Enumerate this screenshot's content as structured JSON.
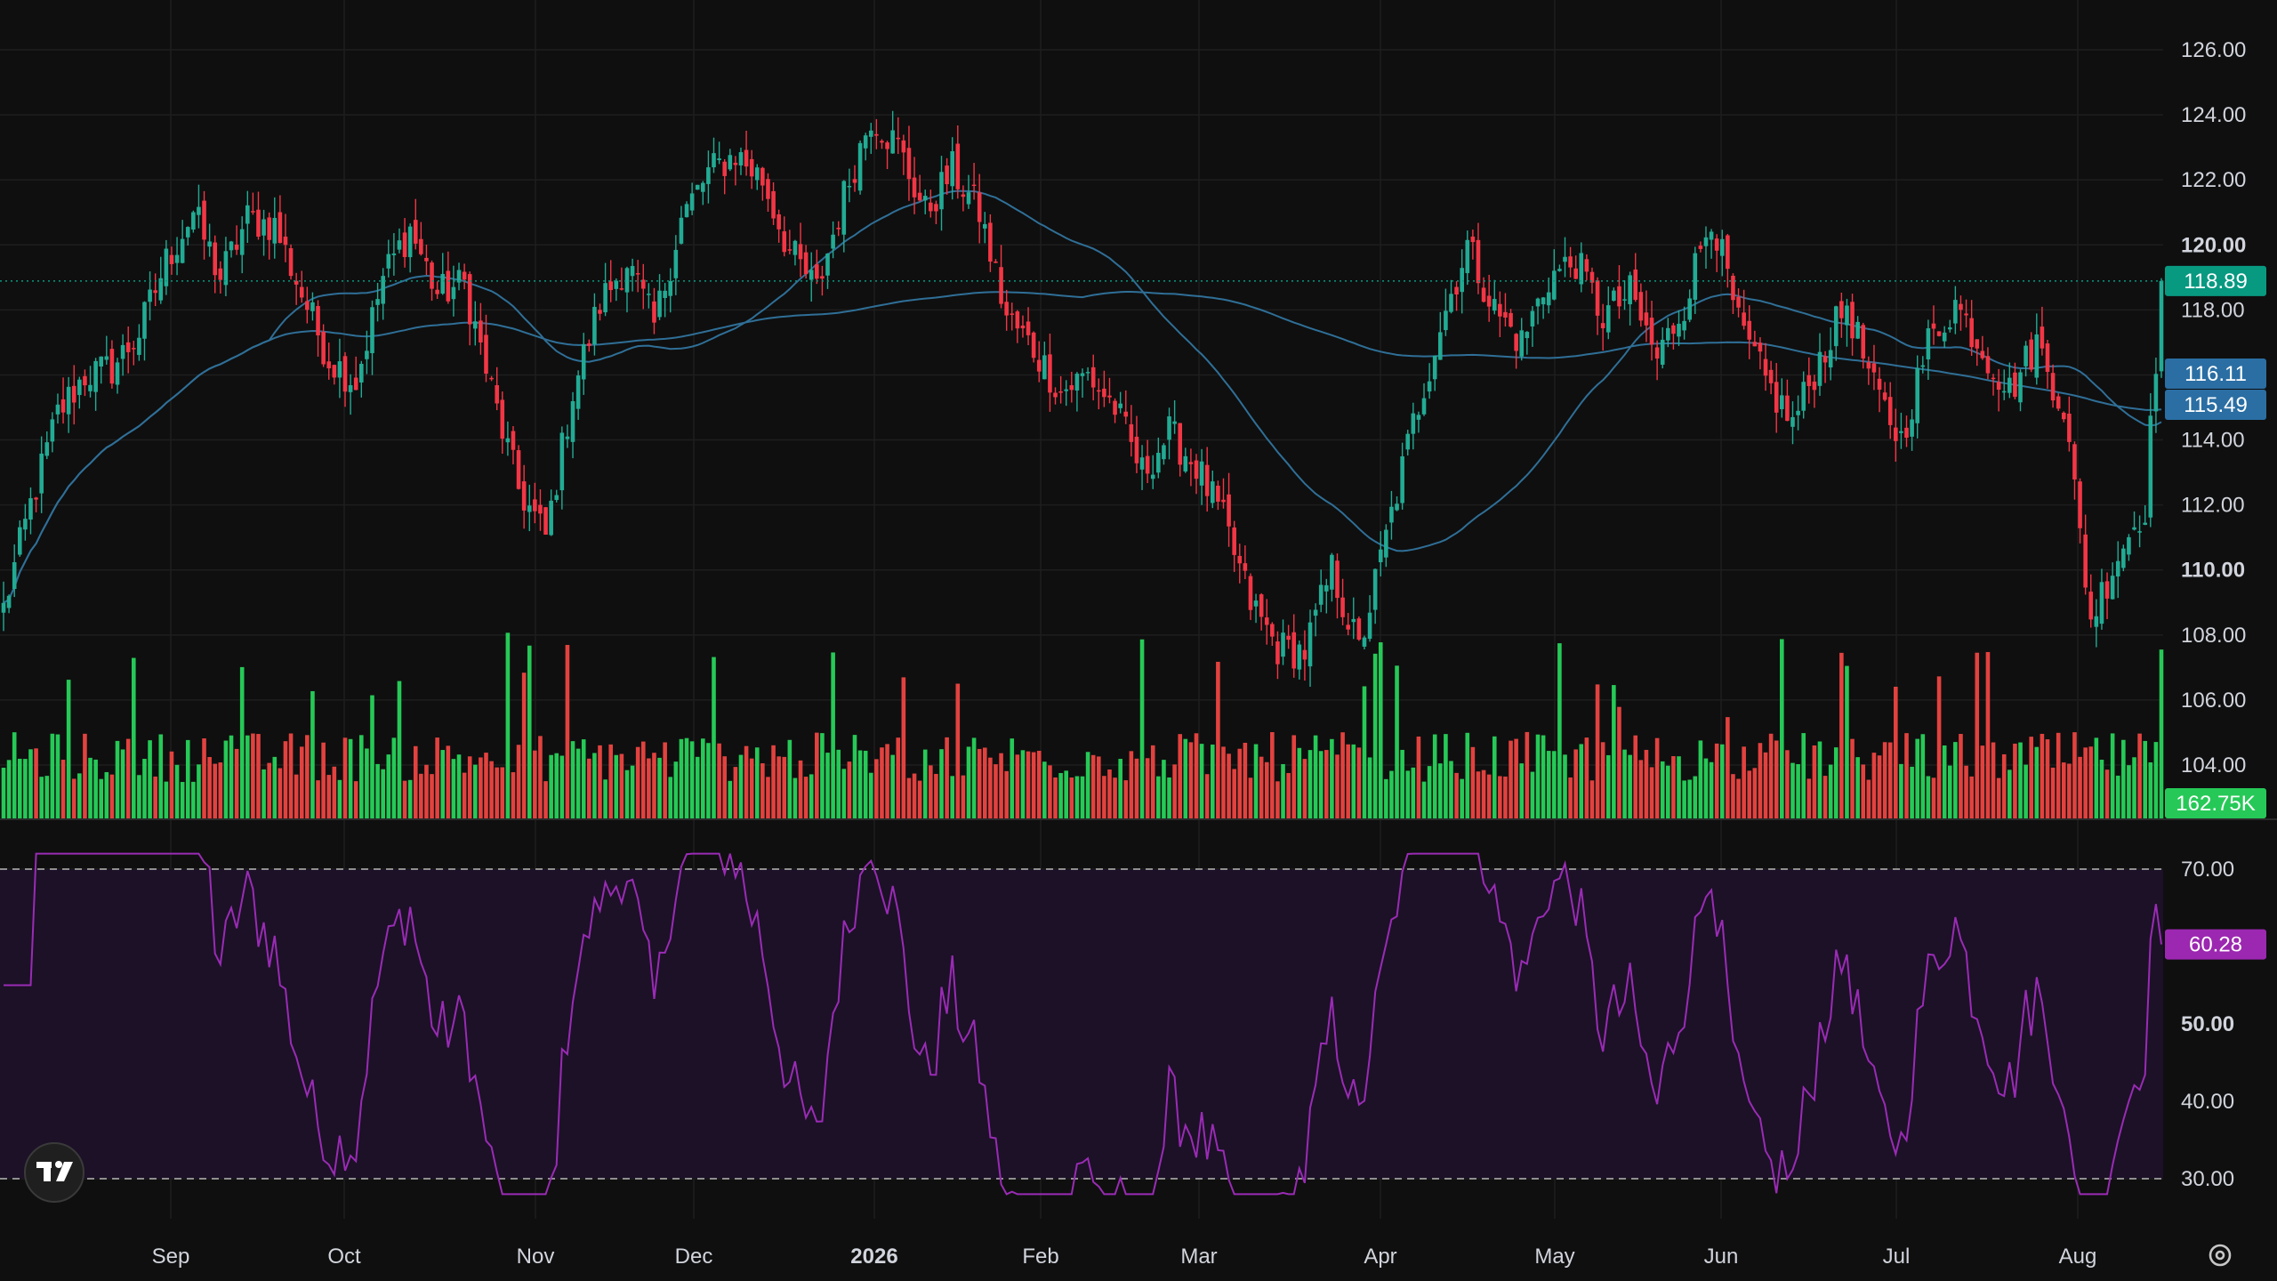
{
  "app": {
    "name": "TradingView",
    "logo_icon": "tradingview-logo-icon",
    "settings_icon": "gear-icon"
  },
  "colors": {
    "background": "#0f0f0f",
    "grid": "#1e1e1e",
    "up": "#22ab94",
    "down": "#f23645",
    "volume_up": "#26c957",
    "volume_down": "#e2423f",
    "ma": "#2f6f97",
    "rsi_line": "#9a2bb5",
    "rsi_band": "#1c1127",
    "axis_text": "#d1d4dc",
    "price_badge": "#089981",
    "ma_badge": "#2a6ea3",
    "volume_badge": "#26c957",
    "rsi_badge": "#9c27b0"
  },
  "axes": {
    "price_ticks": [
      "126.00",
      "124.00",
      "122.00",
      "120.00",
      "118.00",
      "116.00",
      "114.00",
      "112.00",
      "110.00",
      "108.00",
      "106.00",
      "104.00"
    ],
    "price_bold_ticks": [
      "120.00",
      "110.00"
    ],
    "rsi_ticks": [
      "70.00",
      "60.00",
      "50.00",
      "40.00",
      "30.00"
    ],
    "rsi_bold_ticks": [
      "50.00"
    ],
    "time_labels": [
      "Sep",
      "Oct",
      "Nov",
      "Dec",
      "2026",
      "Feb",
      "Mar",
      "Apr",
      "May",
      "Jun",
      "Jul",
      "Aug"
    ],
    "time_bold_labels": [
      "2026"
    ]
  },
  "badges": {
    "last_price": "118.89",
    "ma_fast": "116.11",
    "ma_slow": "115.49",
    "volume": "162.75K",
    "rsi": "60.28"
  },
  "chart_data": {
    "type": "candlestick",
    "x_range": [
      "2025-08-18",
      "2026-07-31"
    ],
    "price_range": [
      103,
      127
    ],
    "rsi_range": [
      27,
      72
    ],
    "rsi_levels": [
      70,
      30
    ],
    "price_anchors": [
      [
        0,
        108.8
      ],
      [
        5,
        112.0
      ],
      [
        10,
        114.8
      ],
      [
        15,
        116.0
      ],
      [
        20,
        116.2
      ],
      [
        25,
        117.3
      ],
      [
        30,
        119.5
      ],
      [
        35,
        121.0
      ],
      [
        40,
        119.0
      ],
      [
        45,
        120.8
      ],
      [
        50,
        120.6
      ],
      [
        55,
        118.5
      ],
      [
        60,
        116.5
      ],
      [
        65,
        115.8
      ],
      [
        70,
        119.0
      ],
      [
        75,
        120.5
      ],
      [
        80,
        118.5
      ],
      [
        85,
        118.8
      ],
      [
        90,
        115.5
      ],
      [
        95,
        112.5
      ],
      [
        100,
        111.0
      ],
      [
        105,
        115.5
      ],
      [
        110,
        118.2
      ],
      [
        115,
        119.5
      ],
      [
        120,
        117.5
      ],
      [
        125,
        120.8
      ],
      [
        130,
        122.2
      ],
      [
        135,
        122.8
      ],
      [
        140,
        122.0
      ],
      [
        145,
        119.8
      ],
      [
        150,
        118.6
      ],
      [
        155,
        121.5
      ],
      [
        160,
        124.0
      ],
      [
        165,
        123.0
      ],
      [
        170,
        121.0
      ],
      [
        175,
        122.3
      ],
      [
        180,
        121.0
      ],
      [
        185,
        117.8
      ],
      [
        190,
        116.8
      ],
      [
        195,
        115.5
      ],
      [
        200,
        116.0
      ],
      [
        205,
        115.0
      ],
      [
        210,
        113.0
      ],
      [
        215,
        114.2
      ],
      [
        220,
        113.2
      ],
      [
        225,
        111.5
      ],
      [
        230,
        109.0
      ],
      [
        235,
        107.6
      ],
      [
        240,
        107.5
      ],
      [
        245,
        110.0
      ],
      [
        250,
        107.5
      ],
      [
        255,
        111.0
      ],
      [
        260,
        114.5
      ],
      [
        265,
        117.5
      ],
      [
        270,
        120.0
      ],
      [
        275,
        118.0
      ],
      [
        280,
        117.0
      ],
      [
        285,
        119.0
      ],
      [
        290,
        119.5
      ],
      [
        295,
        117.8
      ],
      [
        300,
        118.5
      ],
      [
        305,
        116.5
      ],
      [
        310,
        118.2
      ],
      [
        315,
        121.0
      ],
      [
        320,
        117.5
      ],
      [
        325,
        115.8
      ],
      [
        330,
        114.5
      ],
      [
        335,
        116.5
      ],
      [
        340,
        118.2
      ],
      [
        345,
        115.5
      ],
      [
        350,
        114.0
      ],
      [
        355,
        117.0
      ],
      [
        360,
        118.2
      ],
      [
        365,
        116.8
      ],
      [
        370,
        115.5
      ],
      [
        375,
        117.0
      ],
      [
        380,
        115.0
      ],
      [
        385,
        108.5
      ],
      [
        390,
        110.5
      ],
      [
        395,
        112.0
      ],
      [
        398,
        118.8
      ]
    ],
    "volume_range": [
      0,
      900
    ]
  }
}
